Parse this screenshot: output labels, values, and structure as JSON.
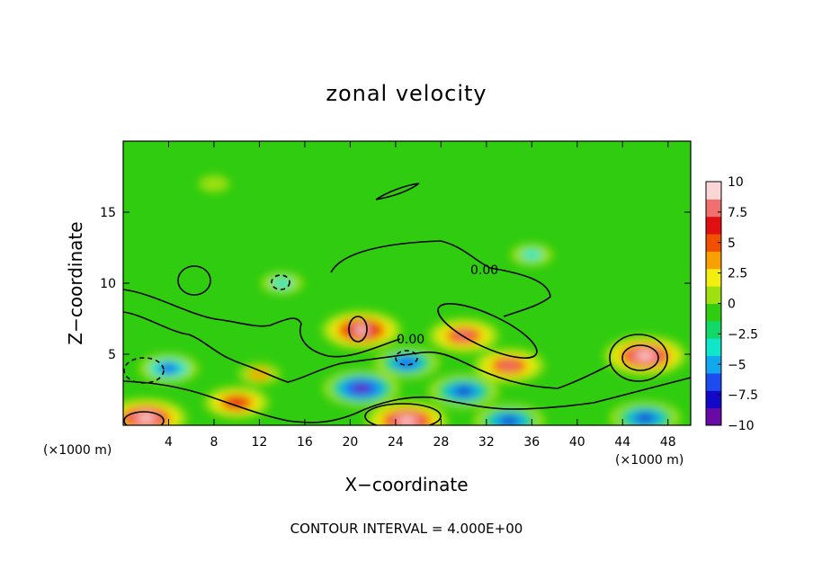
{
  "chart_data": {
    "type": "heatmap",
    "title": "zonal velocity",
    "xlabel": "X−coordinate",
    "ylabel": "Z−coordinate",
    "x_unit_left": "(×1000 m)",
    "x_unit_right": "(×1000 m)",
    "xlim": [
      0,
      50
    ],
    "ylim": [
      0,
      20
    ],
    "x_ticks": [
      4,
      8,
      12,
      16,
      20,
      24,
      28,
      32,
      36,
      40,
      44,
      48
    ],
    "x_tick_labels": [
      "4",
      "8",
      "12",
      "16",
      "20",
      "24",
      "28",
      "32",
      "36",
      "40",
      "44",
      "48"
    ],
    "y_ticks": [
      5,
      10,
      15
    ],
    "y_tick_labels": [
      "5",
      "10",
      "15"
    ],
    "colorbar": {
      "range": [
        -10,
        10
      ],
      "ticks": [
        10,
        7.5,
        5,
        2.5,
        0,
        -2.5,
        -5,
        -7.5,
        -10
      ],
      "tick_labels": [
        "10",
        "7.5",
        "5",
        "2.5",
        "0",
        "−2.5",
        "−5",
        "−7.5",
        "−10"
      ],
      "colors": [
        "#6a0aa6",
        "#1408c8",
        "#1c4cf0",
        "#12a8f0",
        "#10e6c8",
        "#12d86a",
        "#2fcc10",
        "#9fe010",
        "#f2ee10",
        "#f8a000",
        "#f05000",
        "#e01010",
        "#f07070",
        "#fbd6d6"
      ]
    },
    "contour_labels": [
      "0.00",
      "0.00"
    ],
    "footer": "CONTOUR INTERVAL = 4.000E+00",
    "features": [
      {
        "x": 2,
        "z": 0.5,
        "value": 10
      },
      {
        "x": 4,
        "z": 4,
        "value": -6
      },
      {
        "x": 10,
        "z": 1.6,
        "value": 7
      },
      {
        "x": 14,
        "z": 10,
        "value": -3
      },
      {
        "x": 21,
        "z": 6.7,
        "value": 9.5
      },
      {
        "x": 21,
        "z": 2.6,
        "value": -9
      },
      {
        "x": 25,
        "z": 4.4,
        "value": -7
      },
      {
        "x": 25,
        "z": 0.3,
        "value": 10
      },
      {
        "x": 30,
        "z": 6.3,
        "value": 8
      },
      {
        "x": 34,
        "z": 4.2,
        "value": 8
      },
      {
        "x": 34,
        "z": 0.3,
        "value": -8
      },
      {
        "x": 30,
        "z": 2.4,
        "value": -8
      },
      {
        "x": 46,
        "z": 4.9,
        "value": 10
      },
      {
        "x": 46,
        "z": 0.5,
        "value": -8
      },
      {
        "x": 36,
        "z": 12,
        "value": -3
      },
      {
        "x": 8,
        "z": 17,
        "value": 1
      },
      {
        "x": 12,
        "z": 3.6,
        "value": 3
      }
    ]
  }
}
